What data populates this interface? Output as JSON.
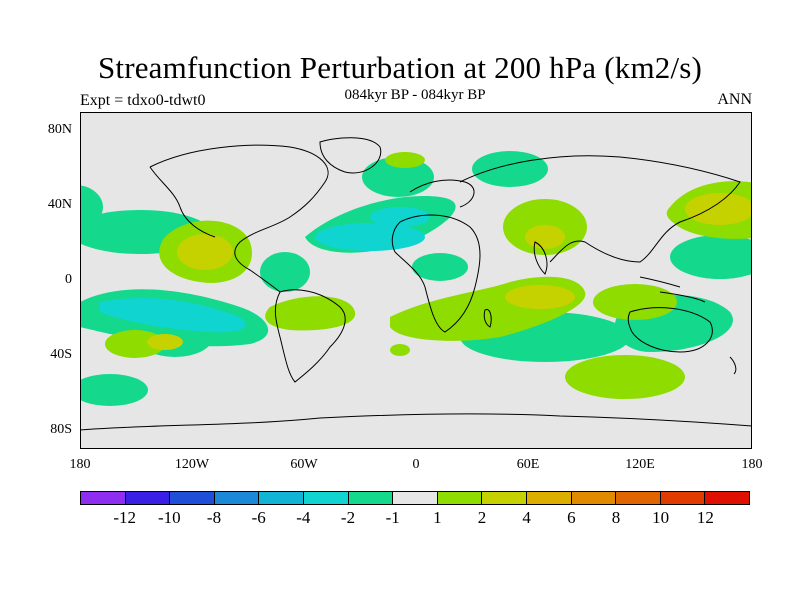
{
  "title": "Streamfunction Perturbation at 200 hPa (km2/s)",
  "subtitle_left": "Expt = tdxo0-tdwt0",
  "subtitle_center": "084kyr BP - 084kyr BP",
  "subtitle_right": "ANN",
  "y_ticks": [
    "80N",
    "40N",
    "0",
    "40S",
    "80S"
  ],
  "x_ticks": [
    "180",
    "120W",
    "60W",
    "0",
    "60E",
    "120E",
    "180"
  ],
  "colorbar": {
    "colors": [
      "#8e2ef0",
      "#3a1fe6",
      "#1f4fd6",
      "#1b88d8",
      "#12b4d6",
      "#10d4d0",
      "#14d98d",
      "#e6e6e6",
      "#8fdc00",
      "#c6d200",
      "#dcae00",
      "#e08a00",
      "#e06400",
      "#e03c00",
      "#e01000"
    ],
    "labels": [
      "-12",
      "-10",
      "-8",
      "-6",
      "-4",
      "-2",
      "-1",
      "1",
      "2",
      "4",
      "6",
      "8",
      "10",
      "12"
    ]
  },
  "map_fill_colors": {
    "background": "#e6e6e6",
    "neg_light": "#14d98d",
    "neg_mid": "#10d4d0",
    "pos_light": "#8fdc00",
    "pos_mid": "#c6d200"
  }
}
